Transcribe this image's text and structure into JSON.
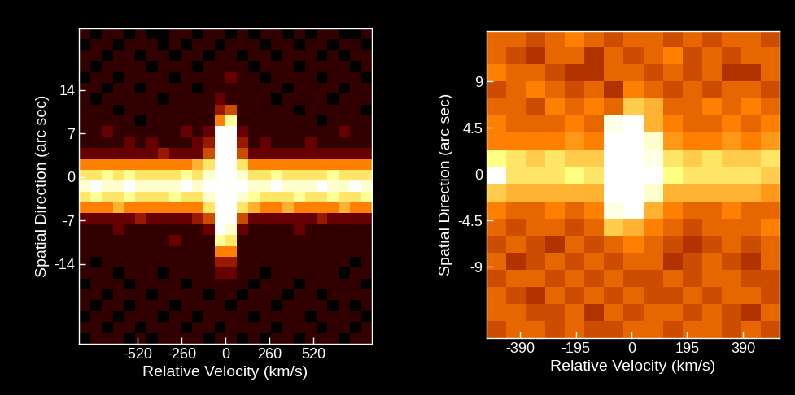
{
  "chart_data": [
    {
      "type": "heatmap",
      "xlabel": "Relative Velocity (km/s)",
      "ylabel": "Spatial Direction (arc sec)",
      "xlim": [
        -867,
        867
      ],
      "ylim": [
        -26.8,
        23.9
      ],
      "xticks": [
        -520,
        -260,
        0,
        260,
        520
      ],
      "yticks": [
        14,
        7,
        0,
        -7,
        -14
      ],
      "clim": [
        0,
        10
      ],
      "cells": [
        [
          1,
          0,
          1,
          1,
          0,
          1,
          0,
          0,
          1,
          1,
          0,
          1,
          1,
          0,
          1,
          0,
          1,
          1,
          0,
          1,
          0,
          1,
          1,
          0,
          0,
          1
        ],
        [
          0,
          1,
          1,
          0,
          1,
          1,
          1,
          0,
          1,
          0,
          1,
          1,
          0,
          1,
          1,
          1,
          0,
          1,
          1,
          0,
          1,
          1,
          0,
          1,
          1,
          0
        ],
        [
          1,
          1,
          0,
          1,
          1,
          0,
          1,
          1,
          0,
          1,
          1,
          0,
          1,
          1,
          0,
          1,
          1,
          0,
          1,
          1,
          1,
          0,
          1,
          0,
          1,
          1
        ],
        [
          1,
          0,
          1,
          1,
          1,
          1,
          0,
          1,
          1,
          1,
          0,
          1,
          1,
          1,
          1,
          0,
          1,
          1,
          1,
          0,
          1,
          1,
          1,
          1,
          0,
          1
        ],
        [
          0,
          1,
          1,
          0,
          1,
          1,
          1,
          1,
          0,
          1,
          1,
          1,
          1,
          2,
          1,
          1,
          0,
          1,
          1,
          1,
          1,
          0,
          1,
          1,
          1,
          0
        ],
        [
          1,
          1,
          0,
          1,
          1,
          0,
          1,
          1,
          1,
          1,
          0,
          1,
          1,
          1,
          1,
          1,
          1,
          1,
          0,
          1,
          1,
          1,
          1,
          0,
          1,
          1
        ],
        [
          1,
          0,
          1,
          1,
          1,
          1,
          1,
          0,
          1,
          1,
          1,
          1,
          2,
          1,
          1,
          1,
          1,
          0,
          1,
          1,
          1,
          1,
          0,
          1,
          1,
          1
        ],
        [
          1,
          1,
          1,
          0,
          1,
          1,
          1,
          1,
          1,
          1,
          1,
          1,
          3,
          4,
          1,
          1,
          1,
          1,
          1,
          0,
          1,
          1,
          1,
          1,
          1,
          0
        ],
        [
          1,
          1,
          1,
          1,
          1,
          0,
          1,
          1,
          1,
          1,
          1,
          1,
          5,
          8,
          1,
          1,
          1,
          1,
          1,
          1,
          1,
          0,
          1,
          1,
          1,
          1
        ],
        [
          1,
          1,
          2,
          1,
          1,
          1,
          1,
          1,
          1,
          2,
          1,
          2,
          10,
          10,
          2,
          1,
          1,
          1,
          1,
          1,
          1,
          1,
          1,
          2,
          1,
          1
        ],
        [
          1,
          1,
          1,
          1,
          2,
          1,
          2,
          1,
          1,
          1,
          2,
          3,
          10,
          10,
          3,
          1,
          2,
          1,
          1,
          1,
          2,
          1,
          1,
          1,
          1,
          1
        ],
        [
          2,
          2,
          2,
          2,
          2,
          2,
          2,
          3,
          2,
          2,
          2,
          4,
          10,
          10,
          4,
          2,
          2,
          2,
          2,
          2,
          2,
          2,
          2,
          2,
          2,
          2
        ],
        [
          5,
          5,
          5,
          5,
          5,
          5,
          5,
          5,
          5,
          5,
          6,
          7,
          10,
          10,
          7,
          5,
          5,
          5,
          5,
          5,
          5,
          5,
          5,
          5,
          5,
          5
        ],
        [
          7,
          7,
          8,
          7,
          8,
          7,
          7,
          7,
          7,
          8,
          7,
          9,
          10,
          10,
          9,
          7,
          7,
          8,
          7,
          7,
          7,
          7,
          8,
          7,
          7,
          7
        ],
        [
          9,
          10,
          9,
          9,
          10,
          9,
          9,
          9,
          9,
          10,
          9,
          10,
          10,
          10,
          10,
          9,
          9,
          10,
          9,
          9,
          9,
          10,
          9,
          9,
          10,
          9
        ],
        [
          7,
          8,
          7,
          7,
          8,
          7,
          7,
          7,
          8,
          7,
          7,
          9,
          10,
          10,
          9,
          8,
          7,
          7,
          7,
          8,
          7,
          7,
          8,
          7,
          7,
          8
        ],
        [
          5,
          5,
          5,
          6,
          5,
          5,
          5,
          5,
          5,
          5,
          5,
          7,
          10,
          10,
          7,
          6,
          5,
          5,
          6,
          5,
          5,
          5,
          5,
          6,
          5,
          5
        ],
        [
          2,
          2,
          2,
          2,
          2,
          3,
          2,
          2,
          2,
          2,
          3,
          4,
          10,
          10,
          4,
          2,
          2,
          2,
          2,
          2,
          2,
          3,
          2,
          2,
          2,
          2
        ],
        [
          1,
          1,
          1,
          2,
          1,
          1,
          1,
          1,
          1,
          1,
          1,
          2,
          10,
          9,
          2,
          1,
          1,
          1,
          1,
          2,
          1,
          1,
          1,
          1,
          1,
          1
        ],
        [
          1,
          1,
          1,
          1,
          1,
          1,
          1,
          1,
          2,
          1,
          1,
          1,
          8,
          7,
          1,
          1,
          1,
          1,
          1,
          1,
          1,
          1,
          1,
          1,
          1,
          1
        ],
        [
          1,
          1,
          1,
          1,
          1,
          1,
          1,
          1,
          1,
          1,
          1,
          1,
          5,
          5,
          1,
          1,
          1,
          1,
          1,
          1,
          1,
          1,
          1,
          1,
          1,
          1
        ],
        [
          1,
          0,
          1,
          1,
          1,
          1,
          1,
          1,
          1,
          1,
          1,
          1,
          3,
          3,
          1,
          1,
          1,
          1,
          1,
          1,
          1,
          1,
          1,
          1,
          0,
          1
        ],
        [
          1,
          1,
          1,
          0,
          1,
          1,
          1,
          0,
          1,
          1,
          1,
          1,
          2,
          2,
          1,
          1,
          0,
          1,
          1,
          1,
          1,
          1,
          1,
          0,
          1,
          1
        ],
        [
          0,
          1,
          1,
          1,
          0,
          1,
          1,
          1,
          1,
          0,
          1,
          1,
          1,
          1,
          1,
          0,
          1,
          1,
          1,
          0,
          1,
          1,
          1,
          1,
          1,
          0
        ],
        [
          1,
          1,
          0,
          1,
          1,
          1,
          0,
          1,
          1,
          1,
          1,
          0,
          1,
          1,
          0,
          1,
          1,
          1,
          0,
          1,
          1,
          0,
          1,
          1,
          1,
          1
        ],
        [
          1,
          0,
          1,
          1,
          0,
          1,
          1,
          1,
          0,
          1,
          1,
          1,
          1,
          0,
          1,
          1,
          1,
          0,
          1,
          1,
          1,
          1,
          0,
          1,
          0,
          1
        ],
        [
          0,
          1,
          1,
          0,
          1,
          1,
          1,
          0,
          1,
          1,
          0,
          1,
          1,
          1,
          1,
          0,
          1,
          1,
          1,
          1,
          0,
          1,
          1,
          1,
          1,
          0
        ],
        [
          1,
          1,
          0,
          1,
          1,
          0,
          1,
          1,
          1,
          0,
          1,
          1,
          0,
          1,
          1,
          1,
          1,
          0,
          1,
          1,
          1,
          0,
          1,
          1,
          0,
          1
        ],
        [
          0,
          1,
          1,
          1,
          0,
          1,
          0,
          1,
          1,
          1,
          1,
          0,
          1,
          1,
          0,
          1,
          0,
          1,
          1,
          0,
          1,
          1,
          1,
          0,
          1,
          1
        ]
      ]
    },
    {
      "type": "heatmap",
      "xlabel": "Relative Velocity (km/s)",
      "ylabel": "Spatial Direction (arc sec)",
      "xlim": [
        -507,
        518
      ],
      "ylim": [
        -15.9,
        13.9
      ],
      "xticks": [
        -390,
        -195,
        0,
        195,
        390
      ],
      "yticks": [
        9,
        4.5,
        0,
        -4.5,
        -9
      ],
      "clim": [
        0,
        20
      ],
      "cells": [
        [
          9,
          9,
          8,
          9,
          10,
          9,
          8,
          9,
          9,
          8,
          9,
          8,
          9,
          9,
          8
        ],
        [
          9,
          8,
          7,
          9,
          9,
          7,
          9,
          8,
          9,
          10,
          8,
          9,
          8,
          9,
          9
        ],
        [
          10,
          9,
          9,
          8,
          7,
          7,
          9,
          9,
          8,
          9,
          8,
          9,
          7,
          7,
          9
        ],
        [
          8,
          9,
          10,
          9,
          8,
          9,
          7,
          10,
          9,
          8,
          9,
          8,
          9,
          9,
          8
        ],
        [
          9,
          9,
          8,
          10,
          9,
          10,
          9,
          13,
          12,
          9,
          9,
          10,
          9,
          10,
          9
        ],
        [
          10,
          9,
          9,
          9,
          10,
          9,
          19,
          20,
          12,
          10,
          9,
          9,
          10,
          9,
          10
        ],
        [
          10,
          10,
          10,
          10,
          11,
          10,
          20,
          20,
          18,
          11,
          10,
          10,
          11,
          10,
          11
        ],
        [
          15,
          14,
          13,
          14,
          13,
          13,
          20,
          20,
          19,
          14,
          13,
          14,
          13,
          13,
          14
        ],
        [
          20,
          14,
          14,
          14,
          15,
          14,
          20,
          20,
          20,
          15,
          14,
          14,
          14,
          14,
          13
        ],
        [
          13,
          12,
          12,
          12,
          12,
          12,
          20,
          20,
          18,
          12,
          12,
          12,
          12,
          12,
          11
        ],
        [
          10,
          9,
          9,
          10,
          9,
          10,
          19,
          20,
          12,
          10,
          9,
          9,
          10,
          9,
          9
        ],
        [
          9,
          8,
          9,
          9,
          8,
          9,
          13,
          12,
          10,
          9,
          8,
          9,
          9,
          9,
          10
        ],
        [
          8,
          9,
          8,
          7,
          9,
          8,
          9,
          10,
          9,
          8,
          7,
          8,
          9,
          8,
          9
        ],
        [
          9,
          7,
          8,
          9,
          8,
          9,
          8,
          9,
          9,
          7,
          8,
          9,
          8,
          7,
          9
        ],
        [
          8,
          9,
          9,
          8,
          9,
          8,
          9,
          8,
          8,
          9,
          8,
          9,
          9,
          8,
          8
        ],
        [
          9,
          8,
          7,
          9,
          8,
          9,
          8,
          9,
          8,
          8,
          9,
          8,
          9,
          9,
          8
        ],
        [
          9,
          9,
          8,
          8,
          9,
          7,
          9,
          8,
          9,
          9,
          8,
          9,
          8,
          7,
          9
        ],
        [
          8,
          9,
          9,
          8,
          9,
          8,
          8,
          9,
          9,
          8,
          9,
          9,
          8,
          9,
          8
        ]
      ]
    }
  ]
}
